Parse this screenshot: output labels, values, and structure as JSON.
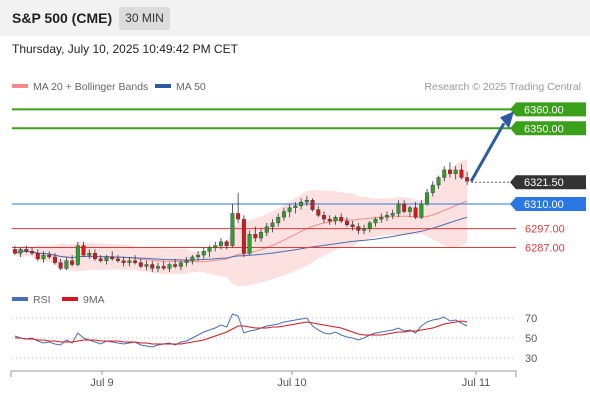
{
  "header": {
    "title": "S&P 500 (CME)",
    "interval": "30 MIN"
  },
  "timestamp": "Thursday, July 10, 2025 10:49:42 PM CET",
  "legend": {
    "ma20": "MA 20 + Bollinger Bands",
    "ma50": "MA 50",
    "credit": "Research © 2025 Trading Central"
  },
  "rsi_legend": {
    "rsi": "RSI",
    "ma9": "9MA"
  },
  "colors": {
    "up": "#2e9e2e",
    "down": "#d4181f",
    "bollinger_fill": "#fbdcdc",
    "ma20": "#f28c8c",
    "ma50": "#4a6fb5",
    "target": "#3aa01a",
    "arrow": "#2d5aa5",
    "pivot": "#2a78e4",
    "support": "#e03a3a",
    "current": "#333333"
  },
  "chart_data": {
    "type": "candlestick",
    "title": "S&P 500 (CME)",
    "y_range": [
      6273,
      6366
    ],
    "x_ticks": [
      "Jul 9",
      "Jul 10",
      "Jul 11"
    ],
    "levels": [
      {
        "label": "6360.00",
        "value": 6360,
        "kind": "target"
      },
      {
        "label": "6350.00",
        "value": 6350,
        "kind": "target"
      },
      {
        "label": "6321.50",
        "value": 6321.5,
        "kind": "current"
      },
      {
        "label": "6310.00",
        "value": 6310,
        "kind": "pivot"
      },
      {
        "label": "6297.00",
        "value": 6297,
        "kind": "support"
      },
      {
        "label": "6287.00",
        "value": 6287,
        "kind": "support"
      }
    ],
    "candles": [
      [
        6286,
        6288,
        6283,
        6284
      ],
      [
        6284,
        6287,
        6282,
        6286
      ],
      [
        6286,
        6288,
        6284,
        6285
      ],
      [
        6285,
        6287,
        6283,
        6284
      ],
      [
        6284,
        6286,
        6280,
        6281
      ],
      [
        6281,
        6285,
        6279,
        6283
      ],
      [
        6283,
        6285,
        6281,
        6282
      ],
      [
        6282,
        6284,
        6278,
        6279
      ],
      [
        6279,
        6281,
        6275,
        6276
      ],
      [
        6276,
        6282,
        6275,
        6280
      ],
      [
        6280,
        6283,
        6277,
        6278
      ],
      [
        6278,
        6290,
        6277,
        6288
      ],
      [
        6288,
        6290,
        6282,
        6283
      ],
      [
        6283,
        6286,
        6281,
        6284
      ],
      [
        6284,
        6286,
        6280,
        6281
      ],
      [
        6281,
        6283,
        6279,
        6280
      ],
      [
        6280,
        6283,
        6278,
        6282
      ],
      [
        6282,
        6285,
        6280,
        6281
      ],
      [
        6281,
        6283,
        6279,
        6280
      ],
      [
        6280,
        6282,
        6277,
        6279
      ],
      [
        6279,
        6282,
        6277,
        6280
      ],
      [
        6280,
        6283,
        6278,
        6279
      ],
      [
        6279,
        6281,
        6276,
        6277
      ],
      [
        6277,
        6280,
        6275,
        6278
      ],
      [
        6278,
        6280,
        6274,
        6276
      ],
      [
        6276,
        6279,
        6274,
        6277
      ],
      [
        6277,
        6280,
        6275,
        6276
      ],
      [
        6276,
        6279,
        6274,
        6278
      ],
      [
        6278,
        6281,
        6276,
        6277
      ],
      [
        6277,
        6280,
        6275,
        6279
      ],
      [
        6279,
        6282,
        6277,
        6280
      ],
      [
        6280,
        6283,
        6278,
        6282
      ],
      [
        6282,
        6285,
        6280,
        6283
      ],
      [
        6283,
        6287,
        6281,
        6285
      ],
      [
        6285,
        6288,
        6282,
        6287
      ],
      [
        6287,
        6290,
        6285,
        6288
      ],
      [
        6288,
        6292,
        6286,
        6290
      ],
      [
        6290,
        6291,
        6286,
        6288
      ],
      [
        6288,
        6310,
        6287,
        6305
      ],
      [
        6305,
        6316,
        6300,
        6302
      ],
      [
        6302,
        6304,
        6282,
        6284
      ],
      [
        6284,
        6296,
        6283,
        6294
      ],
      [
        6294,
        6298,
        6290,
        6292
      ],
      [
        6292,
        6297,
        6290,
        6295
      ],
      [
        6295,
        6300,
        6293,
        6298
      ],
      [
        6298,
        6302,
        6295,
        6300
      ],
      [
        6300,
        6305,
        6298,
        6303
      ],
      [
        6303,
        6308,
        6301,
        6306
      ],
      [
        6306,
        6310,
        6303,
        6308
      ],
      [
        6308,
        6311,
        6305,
        6309
      ],
      [
        6309,
        6313,
        6307,
        6311
      ],
      [
        6311,
        6314,
        6309,
        6312
      ],
      [
        6312,
        6313,
        6306,
        6307
      ],
      [
        6307,
        6309,
        6303,
        6304
      ],
      [
        6304,
        6306,
        6300,
        6302
      ],
      [
        6302,
        6304,
        6299,
        6301
      ],
      [
        6301,
        6304,
        6299,
        6303
      ],
      [
        6303,
        6305,
        6300,
        6301
      ],
      [
        6301,
        6303,
        6298,
        6299
      ],
      [
        6299,
        6301,
        6296,
        6298
      ],
      [
        6298,
        6300,
        6294,
        6296
      ],
      [
        6296,
        6299,
        6294,
        6297
      ],
      [
        6297,
        6301,
        6295,
        6300
      ],
      [
        6300,
        6303,
        6298,
        6302
      ],
      [
        6302,
        6305,
        6300,
        6303
      ],
      [
        6303,
        6306,
        6301,
        6304
      ],
      [
        6304,
        6307,
        6302,
        6305
      ],
      [
        6305,
        6312,
        6303,
        6310
      ],
      [
        6310,
        6312,
        6305,
        6306
      ],
      [
        6306,
        6309,
        6303,
        6308
      ],
      [
        6308,
        6311,
        6302,
        6303
      ],
      [
        6303,
        6312,
        6302,
        6310
      ],
      [
        6310,
        6318,
        6309,
        6316
      ],
      [
        6316,
        6322,
        6314,
        6320
      ],
      [
        6320,
        6325,
        6318,
        6324
      ],
      [
        6324,
        6330,
        6322,
        6328
      ],
      [
        6328,
        6332,
        6324,
        6326
      ],
      [
        6326,
        6330,
        6323,
        6328
      ],
      [
        6328,
        6331,
        6323,
        6324
      ],
      [
        6324,
        6327,
        6320,
        6322
      ]
    ],
    "rsi": {
      "y_ticks": [
        70,
        50,
        30
      ],
      "values": [
        52,
        50,
        49,
        50,
        47,
        45,
        46,
        44,
        43,
        48,
        45,
        55,
        50,
        48,
        46,
        44,
        47,
        46,
        45,
        44,
        45,
        46,
        43,
        42,
        41,
        43,
        44,
        45,
        43,
        46,
        47,
        50,
        53,
        56,
        58,
        60,
        63,
        61,
        74,
        72,
        55,
        57,
        58,
        60,
        62,
        63,
        64,
        66,
        67,
        68,
        69,
        70,
        62,
        58,
        55,
        54,
        56,
        53,
        51,
        50,
        48,
        50,
        53,
        55,
        56,
        57,
        58,
        60,
        57,
        58,
        55,
        62,
        66,
        68,
        69,
        71,
        67,
        68,
        65,
        62
      ],
      "ma9": [
        50,
        50,
        49,
        49,
        48,
        48,
        47,
        47,
        46,
        46,
        46,
        47,
        48,
        48,
        48,
        47,
        47,
        47,
        47,
        46,
        46,
        46,
        45,
        45,
        44,
        44,
        44,
        44,
        44,
        44,
        45,
        46,
        47,
        48,
        50,
        52,
        54,
        56,
        59,
        62,
        62,
        61,
        60,
        60,
        60,
        61,
        61,
        62,
        63,
        64,
        65,
        66,
        65,
        64,
        63,
        62,
        61,
        60,
        58,
        56,
        54,
        53,
        53,
        53,
        53,
        54,
        55,
        56,
        56,
        57,
        57,
        58,
        59,
        60,
        62,
        64,
        65,
        66,
        67,
        66
      ]
    }
  }
}
